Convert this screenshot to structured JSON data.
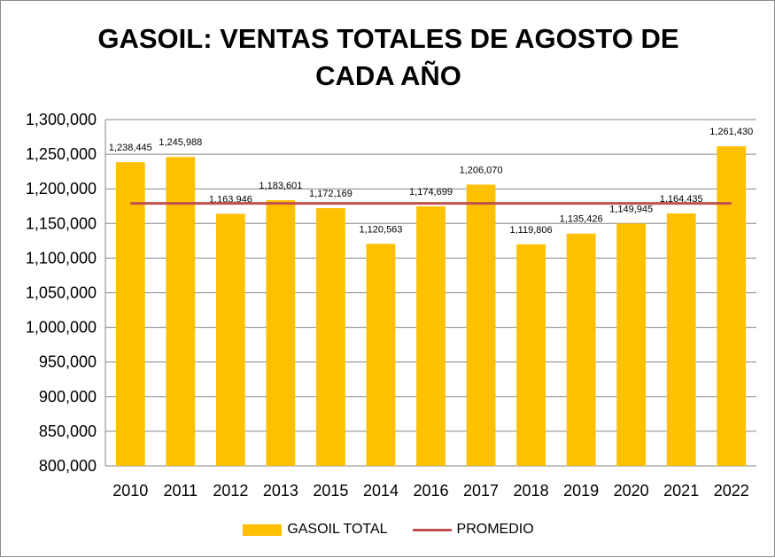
{
  "colors": {
    "bar": "#FFC000",
    "line": "#C0504D",
    "grid": "#868686",
    "axis": "#868686"
  },
  "chart_data": {
    "type": "bar",
    "title_lines": [
      "GASOIL: VENTAS TOTALES DE AGOSTO DE",
      "CADA AÑO"
    ],
    "categories": [
      "2010",
      "2011",
      "2012",
      "2013",
      "2015",
      "2014",
      "2016",
      "2017",
      "2018",
      "2019",
      "2020",
      "2021",
      "2022"
    ],
    "series": [
      {
        "name": "GASOIL TOTAL",
        "type": "bar",
        "values": [
          1238445,
          1245988,
          1163946,
          1183601,
          1172169,
          1120563,
          1174699,
          1206070,
          1119806,
          1135426,
          1149945,
          1164435,
          1261430
        ],
        "labels": [
          "1,238,445",
          "1,245,988",
          "1,163,946",
          "1,183,601",
          "1,172,169",
          "1,120,563",
          "1,174,699",
          "1,206,070",
          "1,119,806",
          "1,135,426",
          "1,149,945",
          "1,164,435",
          "1,261,430"
        ]
      },
      {
        "name": "PROMEDIO",
        "type": "line",
        "value": 1178962
      }
    ],
    "ylim": [
      800000,
      1300000
    ],
    "yticks": [
      800000,
      850000,
      900000,
      950000,
      1000000,
      1050000,
      1100000,
      1150000,
      1200000,
      1250000,
      1300000
    ],
    "ytick_labels": [
      "800,000",
      "850,000",
      "900,000",
      "950,000",
      "1,000,000",
      "1,050,000",
      "1,100,000",
      "1,150,000",
      "1,200,000",
      "1,250,000",
      "1,300,000"
    ],
    "xlabel": "",
    "ylabel": "",
    "grid": true,
    "legend": "bottom"
  }
}
